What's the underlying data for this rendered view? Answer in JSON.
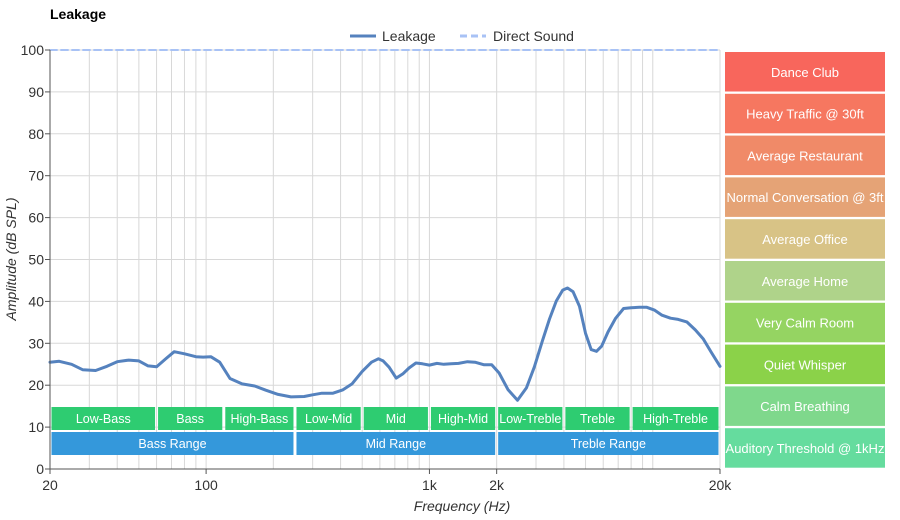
{
  "chart_data": {
    "type": "line",
    "title": "Leakage",
    "xlabel": "Frequency (Hz)",
    "ylabel": "Amplitude (dB SPL)",
    "xscale": "log",
    "xlim": [
      20,
      20000
    ],
    "ylim": [
      0,
      100
    ],
    "grid": true,
    "legend_position": "top-center",
    "x_ticks": [
      {
        "value": 20,
        "label": "20"
      },
      {
        "value": 100,
        "label": "100"
      },
      {
        "value": 1000,
        "label": "1k"
      },
      {
        "value": 2000,
        "label": "2k"
      },
      {
        "value": 20000,
        "label": "20k"
      }
    ],
    "y_ticks": [
      0,
      10,
      20,
      30,
      40,
      50,
      60,
      70,
      80,
      90,
      100
    ],
    "grid_x": [
      30,
      40,
      50,
      60,
      70,
      80,
      90,
      100,
      200,
      300,
      400,
      500,
      600,
      700,
      800,
      900,
      1000,
      2000,
      3000,
      4000,
      5000,
      6000,
      7000,
      8000,
      9000,
      10000,
      20000
    ],
    "series": [
      {
        "name": "Leakage",
        "color": "#5582be",
        "style": "solid",
        "x": [
          20,
          22,
          25,
          28,
          32,
          36,
          40,
          45,
          50,
          55,
          60,
          66,
          72,
          80,
          90,
          97,
          105,
          115,
          128,
          145,
          165,
          185,
          210,
          240,
          275,
          300,
          330,
          370,
          410,
          450,
          500,
          550,
          590,
          620,
          660,
          710,
          760,
          810,
          870,
          930,
          1000,
          1080,
          1160,
          1250,
          1350,
          1480,
          1600,
          1750,
          1900,
          2050,
          2250,
          2480,
          2720,
          2950,
          3200,
          3450,
          3700,
          3950,
          4150,
          4400,
          4700,
          5000,
          5300,
          5600,
          5900,
          6300,
          6800,
          7400,
          8000,
          8700,
          9400,
          10200,
          11000,
          12000,
          13000,
          14200,
          15500,
          16800,
          18300,
          20000
        ],
        "values": [
          25.5,
          25.7,
          25,
          23.7,
          23.5,
          24.5,
          25.6,
          26,
          25.8,
          24.6,
          24.4,
          26.3,
          28,
          27.5,
          26.8,
          26.7,
          26.8,
          25.5,
          21.6,
          20.3,
          19.8,
          18.8,
          17.8,
          17.2,
          17.3,
          17.7,
          18.1,
          18.1,
          18.9,
          20.3,
          23.3,
          25.5,
          26.3,
          25.8,
          24.3,
          21.7,
          22.7,
          24.1,
          25.3,
          25.1,
          24.8,
          25.2,
          25.0,
          25.1,
          25.2,
          25.6,
          25.5,
          24.9,
          24.9,
          22.9,
          18.9,
          16.4,
          19.4,
          24.4,
          30.5,
          35.8,
          40.1,
          42.7,
          43.2,
          42.3,
          38.8,
          32.4,
          28.5,
          28.1,
          29.3,
          32.7,
          35.9,
          38.3,
          38.5,
          38.6,
          38.6,
          37.9,
          36.7,
          36.0,
          35.7,
          35.1,
          33.2,
          31.1,
          27.8,
          24.5
        ]
      },
      {
        "name": "Direct Sound",
        "color": "#a8c2f5",
        "style": "dashed",
        "x": [
          20,
          20000
        ],
        "values": [
          100,
          100
        ]
      }
    ],
    "bands": {
      "sub": [
        {
          "label": "Low-Bass",
          "from": 20,
          "to": 60
        },
        {
          "label": "Bass",
          "from": 60,
          "to": 120
        },
        {
          "label": "High-Bass",
          "from": 120,
          "to": 250
        },
        {
          "label": "Low-Mid",
          "from": 250,
          "to": 500
        },
        {
          "label": "Mid",
          "from": 500,
          "to": 1000
        },
        {
          "label": "High-Mid",
          "from": 1000,
          "to": 2000
        },
        {
          "label": "Low-Treble",
          "from": 2000,
          "to": 4000
        },
        {
          "label": "Treble",
          "from": 4000,
          "to": 8000
        },
        {
          "label": "High-Treble",
          "from": 8000,
          "to": 20000
        }
      ],
      "main": [
        {
          "label": "Bass Range",
          "from": 20,
          "to": 250
        },
        {
          "label": "Mid Range",
          "from": 250,
          "to": 2000
        },
        {
          "label": "Treble Range",
          "from": 2000,
          "to": 20000
        }
      ],
      "sub_color": "#2ecc71",
      "main_color": "#3498db"
    },
    "reference_levels": [
      {
        "label": "Dance Club",
        "color": "#f8665c"
      },
      {
        "label": "Heavy Traffic @ 30ft",
        "color": "#f67760"
      },
      {
        "label": "Average Restaurant",
        "color": "#f08a68"
      },
      {
        "label": "Normal Conversation @ 3ft",
        "color": "#e5a376"
      },
      {
        "label": "Average Office",
        "color": "#d8c386"
      },
      {
        "label": "Average Home",
        "color": "#afd38a"
      },
      {
        "label": "Very Calm Room",
        "color": "#95d462"
      },
      {
        "label": "Quiet Whisper",
        "color": "#8bd249"
      },
      {
        "label": "Calm Breathing",
        "color": "#7fd88c"
      },
      {
        "label": "Auditory Threshold @ 1kHz",
        "color": "#65dc9e"
      }
    ]
  }
}
